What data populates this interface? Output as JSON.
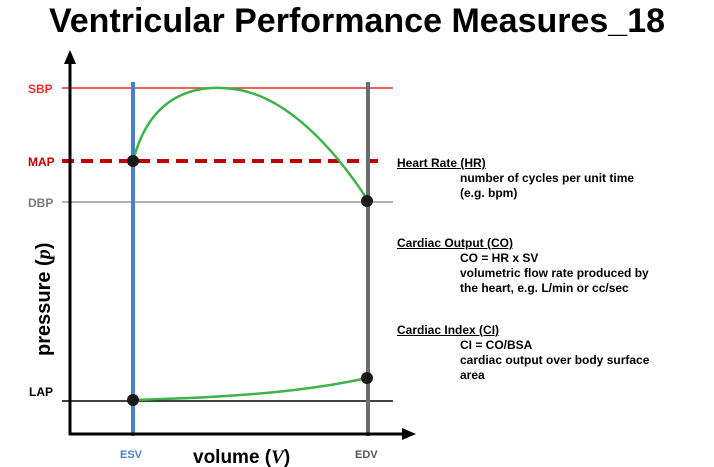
{
  "title": "Ventricular Performance Measures_18",
  "colors": {
    "sbp": "#e8302a",
    "map": "#c00000",
    "dbp": "#9a9a9a",
    "esv": "#4a7fc4",
    "edv": "#6d6d6d",
    "curve": "#3db34a",
    "axis": "#000000"
  },
  "axes": {
    "ylabel_main": "pressure (",
    "ylabel_var": "p",
    "ylabel_close": ")",
    "xlabel_main": "volume (",
    "xlabel_var": "V",
    "xlabel_close": ")"
  },
  "y_markers": {
    "sbp": "SBP",
    "map": "MAP",
    "dbp": "DBP",
    "lap": "LAP"
  },
  "x_markers": {
    "esv": "ESV",
    "edv": "EDV"
  },
  "definitions": [
    {
      "heading": "Heart Rate (HR)",
      "lines": [
        "number of cycles per unit time",
        "(e.g. bpm)"
      ]
    },
    {
      "heading": "Cardiac Output (CO)",
      "lines": [
        "CO = HR x SV",
        "volumetric flow rate produced by",
        "the heart, e.g. L/min or cc/sec"
      ]
    },
    {
      "heading": "Cardiac Index (CI)",
      "lines": [
        "CI = CO/BSA",
        "cardiac output over body surface",
        "area"
      ]
    }
  ]
}
